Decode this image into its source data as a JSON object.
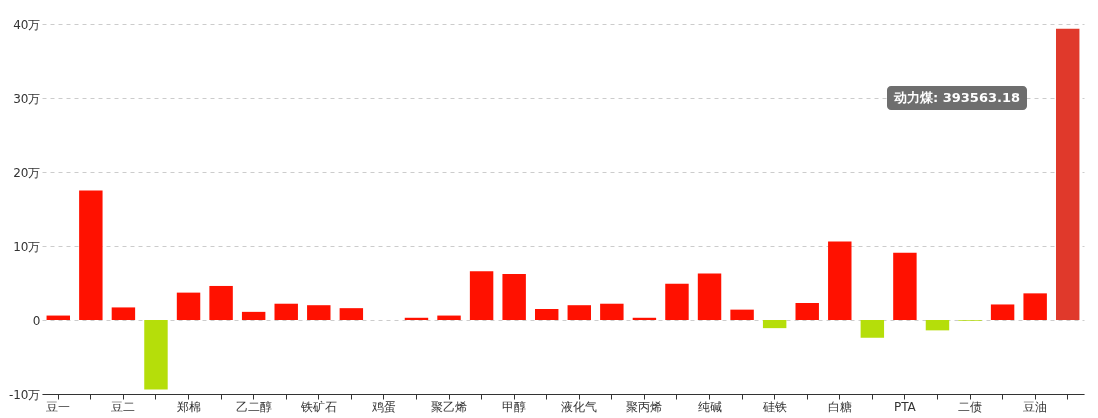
{
  "chart_data": {
    "type": "bar",
    "categories": [
      "豆一",
      null,
      "豆二",
      null,
      "郑棉",
      null,
      "乙二醇",
      null,
      "铁矿石",
      null,
      "鸡蛋",
      null,
      "聚乙烯",
      null,
      "甲醇",
      null,
      "液化气",
      null,
      "聚丙烯",
      null,
      "纯碱",
      null,
      "硅铁",
      null,
      "白糖",
      null,
      "PTA",
      null,
      "二债",
      null,
      "豆油",
      null
    ],
    "values": [
      0.6,
      17.5,
      1.7,
      -9.4,
      3.7,
      4.6,
      1.1,
      2.2,
      2,
      1.6,
      0,
      0.3,
      0.6,
      6.6,
      6.2,
      1.5,
      2,
      2.2,
      0.3,
      4.9,
      6.3,
      1.4,
      -1.1,
      2.3,
      10.6,
      -2.4,
      9.1,
      -1.4,
      -0.1,
      2.1,
      3.6,
      39.356318
    ],
    "colors": [
      "#ff1100",
      "#ff1100",
      "#ff1100",
      "#b5de0a",
      "#ff1100",
      "#ff1100",
      "#ff1100",
      "#ff1100",
      "#ff1100",
      "#ff1100",
      "#ff1100",
      "#ff1100",
      "#ff1100",
      "#ff1100",
      "#ff1100",
      "#ff1100",
      "#ff1100",
      "#ff1100",
      "#ff1100",
      "#ff1100",
      "#ff1100",
      "#ff1100",
      "#b5de0a",
      "#ff1100",
      "#ff1100",
      "#b5de0a",
      "#ff1100",
      "#b5de0a",
      "#b5de0a",
      "#ff1100",
      "#ff1100",
      "#e0392b"
    ],
    "ylim": [
      -10,
      40
    ],
    "yticks": [
      {
        "value": -10,
        "label": "-10万"
      },
      0,
      {
        "value": 10,
        "label": "10万"
      },
      {
        "value": 20,
        "label": "20万"
      },
      {
        "value": 30,
        "label": "30万"
      },
      {
        "value": 40,
        "label": "40万"
      }
    ],
    "grid": "y",
    "annotations": [
      "动力煤: 393563.18"
    ]
  }
}
